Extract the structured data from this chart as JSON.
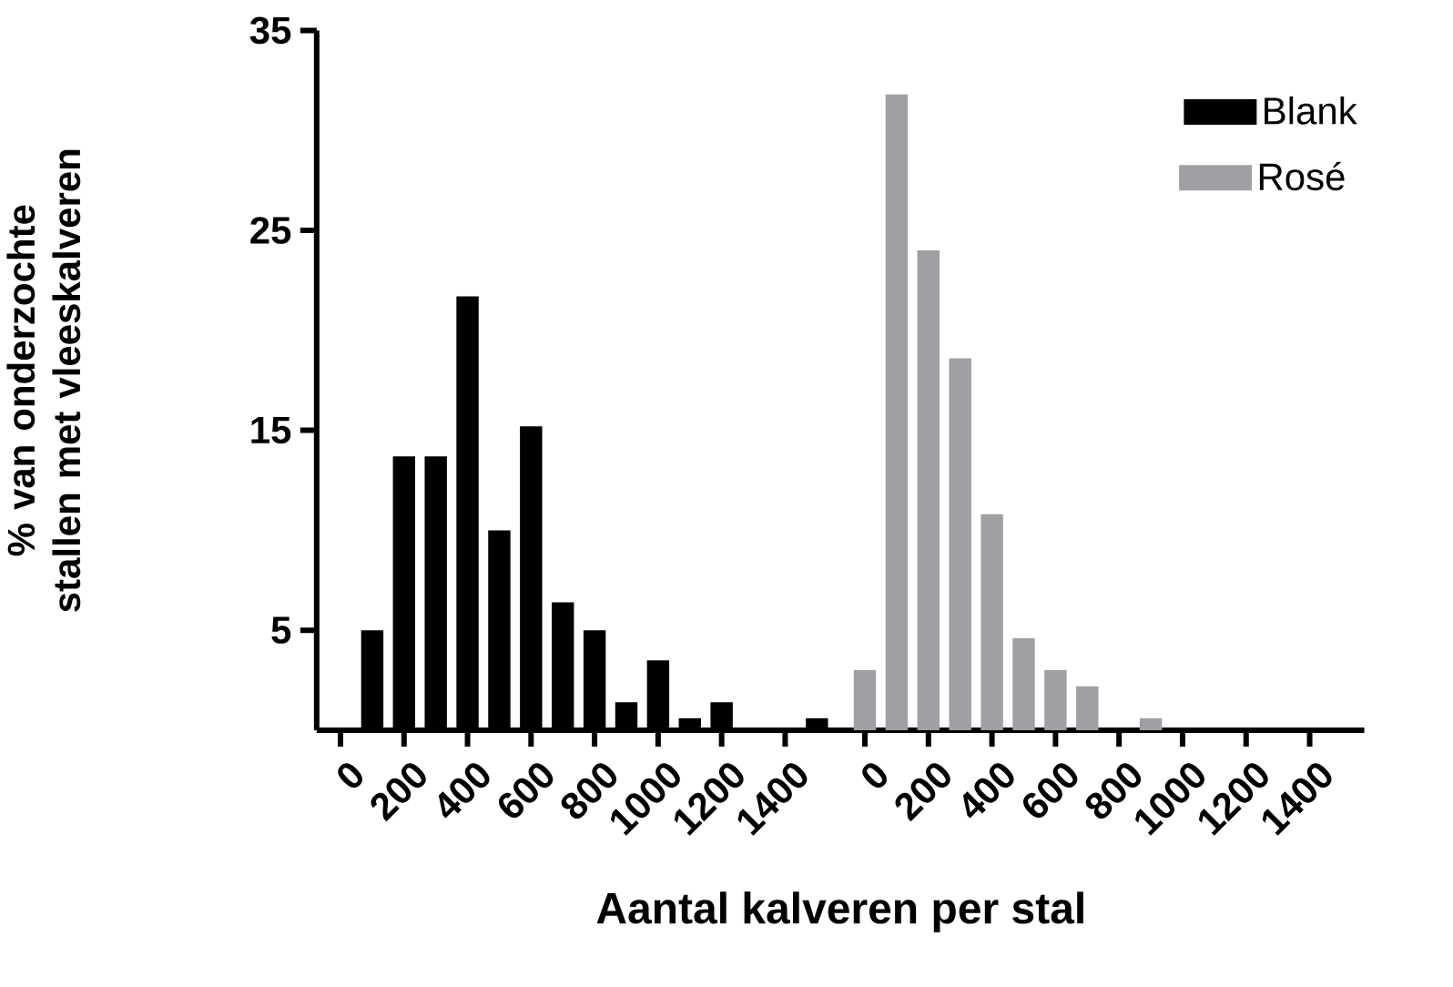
{
  "chart_data": [
    {
      "type": "bar",
      "xlabel": "Aantal kalveren per stal",
      "ylabel": "% van onderzochte stallen met vleeskalveren",
      "xlim": [
        -75,
        1576
      ],
      "ylim": [
        0,
        35
      ],
      "xticks": [
        0,
        200,
        400,
        600,
        800,
        1000,
        1200,
        1400
      ],
      "yticks": [
        5,
        15,
        25,
        35
      ],
      "legend": "top right",
      "series": [
        {
          "name": "Blank",
          "color": "#000000",
          "x": [
            100,
            200,
            300,
            400,
            500,
            600,
            700,
            800,
            900,
            1000,
            1100,
            1200,
            1500
          ],
          "values": [
            5.0,
            13.7,
            13.7,
            21.7,
            10.0,
            15.2,
            6.4,
            5.0,
            1.4,
            3.5,
            0.6,
            1.4,
            0.6
          ]
        }
      ]
    },
    {
      "type": "bar",
      "xlim": [
        -90,
        1572
      ],
      "ylim": [
        0,
        35
      ],
      "xticks": [
        0,
        200,
        400,
        600,
        800,
        1000,
        1200,
        1400
      ],
      "tick_labels": "x",
      "legend": "top right",
      "series": [
        {
          "name": "Rosé",
          "color": "#a0a0a4",
          "x": [
            0,
            100,
            200,
            300,
            400,
            500,
            600,
            700,
            900
          ],
          "values": [
            3.0,
            31.8,
            24.0,
            18.6,
            10.8,
            4.6,
            3.0,
            2.2,
            0.6
          ]
        }
      ]
    }
  ]
}
